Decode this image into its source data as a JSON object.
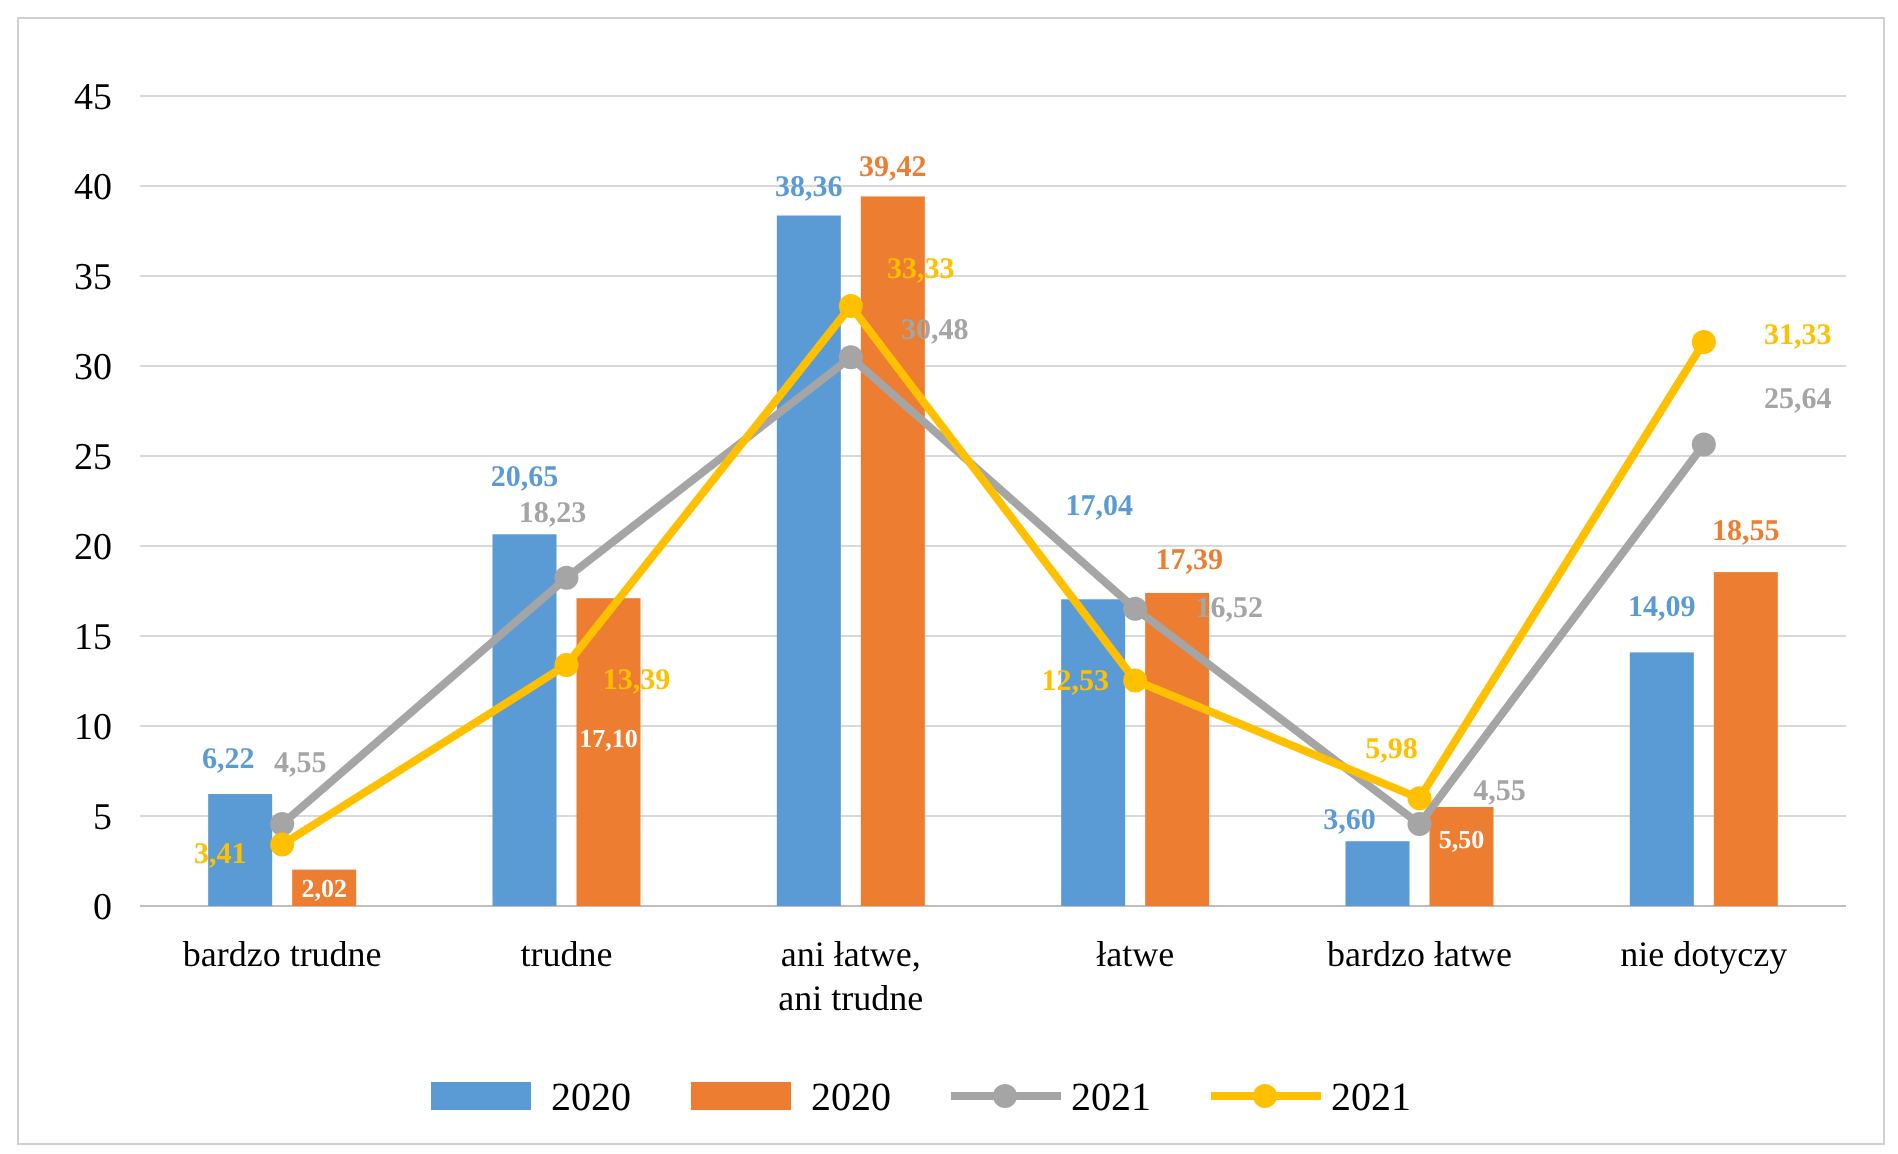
{
  "chart_data": {
    "type": "bar",
    "categories": [
      "bardzo trudne",
      "trudne",
      "ani łatwe,\nani trudne",
      "łatwe",
      "bardzo łatwe",
      "nie dotyczy"
    ],
    "series": [
      {
        "name": "2020",
        "color": "#5b9bd5",
        "values": [
          6.22,
          20.65,
          38.36,
          17.04,
          3.6,
          14.09
        ],
        "value_labels": [
          "6,22",
          "20,65",
          "38,36",
          "17,04",
          "3,60",
          "14,09"
        ]
      },
      {
        "name": "2020",
        "color": "#ed7d31",
        "values": [
          2.02,
          17.1,
          39.42,
          17.39,
          5.5,
          18.55
        ],
        "value_labels": [
          "2,02",
          "17,10",
          "39,42",
          "17,39",
          "5,50",
          "18,55"
        ]
      },
      {
        "name": "2021",
        "type": "line",
        "color": "#a5a5a5",
        "values": [
          4.55,
          18.23,
          30.48,
          16.52,
          4.55,
          25.64
        ],
        "value_labels": [
          "4,55",
          "18,23",
          "30,48",
          "16,52",
          "4,55",
          "25,64"
        ]
      },
      {
        "name": "2021",
        "type": "line",
        "color": "#ffc000",
        "values": [
          3.41,
          13.39,
          33.33,
          12.53,
          5.98,
          31.33
        ],
        "value_labels": [
          "3,41",
          "13,39",
          "33,33",
          "12,53",
          "5,98",
          "31,33"
        ]
      }
    ],
    "ylim": [
      0,
      45
    ],
    "yticks": [
      0,
      5,
      10,
      15,
      20,
      25,
      30,
      35,
      40,
      45
    ],
    "grid": "y",
    "legend": "bottom",
    "marker": "circle",
    "line_style": "solid"
  }
}
